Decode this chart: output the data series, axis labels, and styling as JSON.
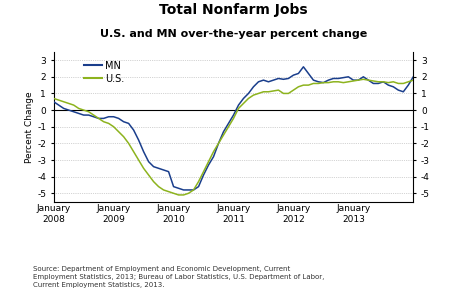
{
  "title_line1": "Total Nonfarm Jobs",
  "title_line2": "U.S. and MN over-the-year percent change",
  "ylabel": "Percent Change",
  "ylim": [
    -5.5,
    3.5
  ],
  "yticks": [
    -5,
    -4,
    -3,
    -2,
    -1,
    0,
    1,
    2,
    3
  ],
  "source_text": "Source: Department of Employment and Economic Development, Current\nEmployment Statistics, 2013; Bureau of Labor Statistics, U.S. Department of Labor,\nCurrent Employment Statistics, 2013.",
  "mn_color": "#1a3e8c",
  "us_color": "#8db31e",
  "mn_label": "MN",
  "us_label": "U.S.",
  "mn_data": [
    0.5,
    0.3,
    0.1,
    0.0,
    -0.1,
    -0.2,
    -0.3,
    -0.3,
    -0.4,
    -0.5,
    -0.5,
    -0.4,
    -0.4,
    -0.5,
    -0.7,
    -0.8,
    -1.2,
    -1.8,
    -2.5,
    -3.1,
    -3.4,
    -3.5,
    -3.6,
    -3.7,
    -4.6,
    -4.7,
    -4.8,
    -4.8,
    -4.8,
    -4.6,
    -3.9,
    -3.3,
    -2.8,
    -2.0,
    -1.3,
    -0.8,
    -0.3,
    0.3,
    0.7,
    1.0,
    1.4,
    1.7,
    1.8,
    1.7,
    1.8,
    1.9,
    1.85,
    1.9,
    2.1,
    2.2,
    2.6,
    2.2,
    1.8,
    1.7,
    1.65,
    1.8,
    1.9,
    1.9,
    1.95,
    2.0,
    1.8,
    1.8,
    2.0,
    1.8,
    1.6,
    1.6,
    1.7,
    1.5,
    1.4,
    1.2,
    1.1,
    1.5,
    2.0
  ],
  "us_data": [
    0.7,
    0.6,
    0.5,
    0.4,
    0.3,
    0.1,
    0.0,
    -0.1,
    -0.3,
    -0.5,
    -0.7,
    -0.8,
    -1.0,
    -1.3,
    -1.6,
    -2.0,
    -2.5,
    -3.0,
    -3.5,
    -3.9,
    -4.3,
    -4.6,
    -4.8,
    -4.9,
    -5.0,
    -5.1,
    -5.1,
    -5.0,
    -4.8,
    -4.3,
    -3.7,
    -3.1,
    -2.5,
    -2.0,
    -1.5,
    -1.0,
    -0.5,
    0.1,
    0.4,
    0.7,
    0.9,
    1.0,
    1.1,
    1.1,
    1.15,
    1.2,
    1.0,
    1.0,
    1.2,
    1.4,
    1.5,
    1.5,
    1.6,
    1.6,
    1.65,
    1.65,
    1.7,
    1.7,
    1.65,
    1.7,
    1.75,
    1.8,
    1.85,
    1.8,
    1.75,
    1.7,
    1.7,
    1.65,
    1.7,
    1.6,
    1.6,
    1.7,
    1.8
  ],
  "n_months": 73,
  "xtick_positions": [
    0,
    12,
    24,
    36,
    48,
    60,
    72
  ],
  "xtick_labels": [
    "January\n2008",
    "January\n2009",
    "January\n2010",
    "January\n2011",
    "January\n2012",
    "January\n2013",
    ""
  ]
}
